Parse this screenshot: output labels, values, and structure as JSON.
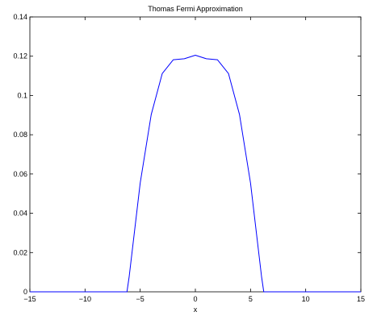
{
  "chart_data": {
    "type": "line",
    "title": "Thomas Fermi Approximation",
    "xlabel": "x",
    "ylabel": "",
    "xlim": [
      -15,
      15
    ],
    "ylim": [
      0,
      0.14
    ],
    "xticks": [
      -15,
      -10,
      -5,
      0,
      5,
      10,
      15
    ],
    "yticks": [
      0,
      0.02,
      0.04,
      0.06,
      0.08,
      0.1,
      0.12,
      0.14
    ],
    "xtick_labels": [
      "−15",
      "−10",
      "−5",
      "0",
      "5",
      "10",
      "15"
    ],
    "ytick_labels": [
      "0",
      "0.02",
      "0.04",
      "0.06",
      "0.08",
      "0.1",
      "0.12",
      "0.14"
    ],
    "grid": false,
    "series": [
      {
        "color": "#0000ff",
        "x": [
          -15,
          -6.2,
          -6,
          -5,
          -4,
          -3,
          -2,
          -1,
          0,
          1,
          2,
          3,
          4,
          5,
          6,
          6.2,
          15
        ],
        "y": [
          0,
          0,
          0.0077,
          0.0554,
          0.0903,
          0.1112,
          0.1182,
          0.1187,
          0.1205,
          0.1187,
          0.1182,
          0.1112,
          0.0903,
          0.0554,
          0.0077,
          0,
          0
        ]
      }
    ]
  }
}
